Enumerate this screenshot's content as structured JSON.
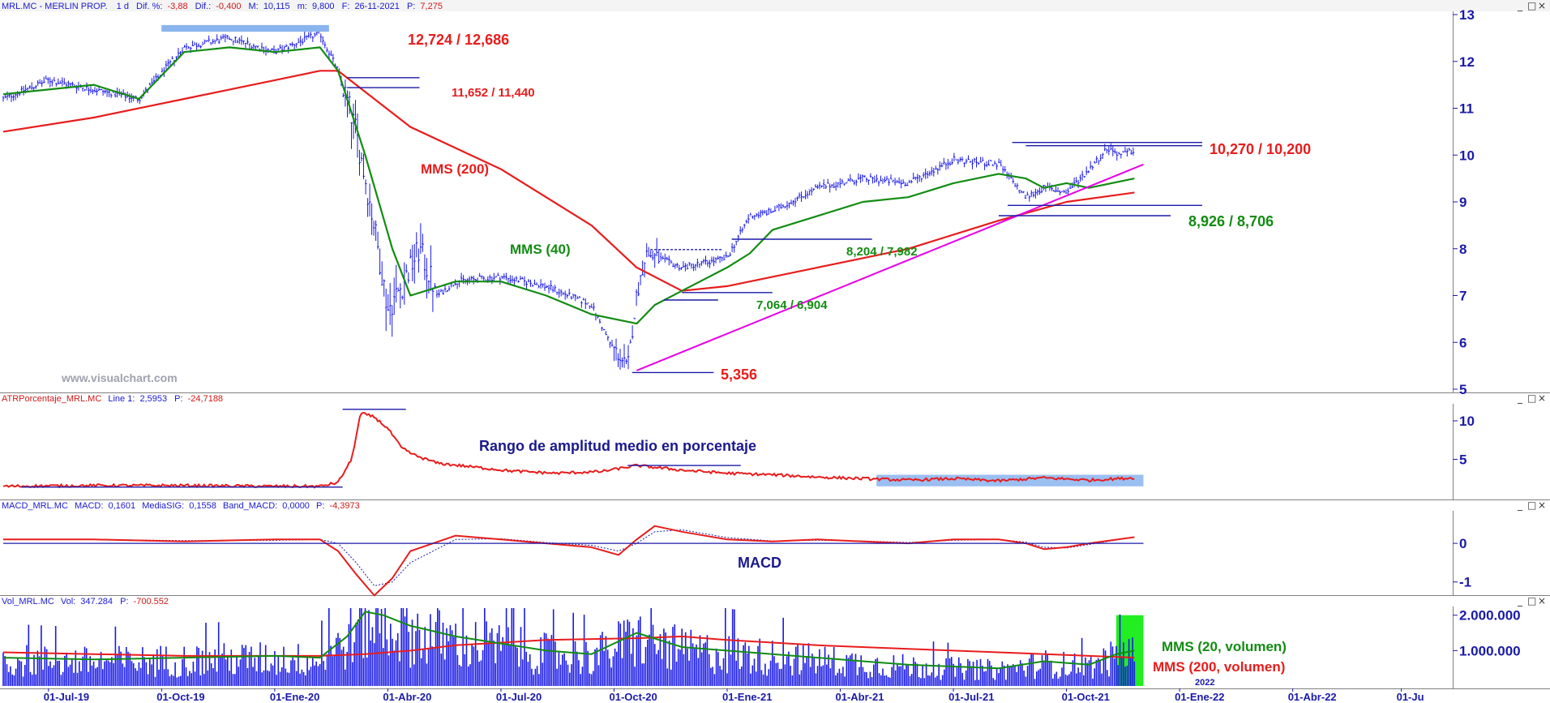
{
  "colors": {
    "price": "#1a1ae6",
    "sma200": "#e81c1c",
    "sma40": "#128c12",
    "trend": "#e800e8",
    "level": "#1a1aa8",
    "header_blue": "#1a1ad0",
    "header_red": "#d01818",
    "zone": "#8ab4ee",
    "volume": "#1a1ae6",
    "vol_highlight": "#22ee22",
    "axis_text": "#1a1aa8"
  },
  "watermark": "www.visualchart.com",
  "header": {
    "symbol": "MRL.MC - MERLIN PROP.",
    "period": "1 d",
    "dif_pct_label": "Dif. %:",
    "dif_pct_value": "-3,88",
    "dif_label": "Dif.:",
    "dif_value": "-0,400",
    "max_label": "M:",
    "max_value": "10,115",
    "min_label": "m:",
    "min_value": "9,800",
    "date_label": "F:",
    "date_value": "26-11-2021",
    "p_label": "P:",
    "p_value": "7,275"
  },
  "atr_header": {
    "name": "ATRPorcentaje_MRL.MC",
    "line_label": "Line 1:",
    "line_value": "2,5953",
    "p_label": "P:",
    "p_value": "-24,7188"
  },
  "macd_header": {
    "name": "MACD_MRL.MC",
    "macd_label": "MACD:",
    "macd_value": "0,1601",
    "sig_label": "MediaSIG:",
    "sig_value": "0,1558",
    "band_label": "Band_MACD:",
    "band_value": "0,0000",
    "p_label": "P:",
    "p_value": "-4,3973"
  },
  "vol_header": {
    "name": "Vol_MRL.MC",
    "vol_label": "Vol:",
    "vol_value": "347.284",
    "p_label": "P:",
    "p_value": "-700.552"
  },
  "window_buttons": {
    "minimize": "_",
    "restore": "□",
    "close": "×"
  },
  "annotations": {
    "resist_top": "12,724 / 12,686",
    "resist_mid": "11,652 / 11,440",
    "resist_recent": "10,270 / 10,200",
    "support_recent": "8,926 / 8,706",
    "level_8204": "8,204 / 7,982",
    "level_7064": "7,064 / 6,904",
    "low_5356": "5,356",
    "sma200_label": "MMS (200)",
    "sma40_label": "MMS (40)",
    "atr_text": "Rango de amplitud medio en porcentaje",
    "macd_text": "MACD",
    "vol_sma20_label": "MMS (20, volumen)",
    "vol_sma200_label": "MMS (200, volumen)",
    "year_2022": "2022"
  },
  "chart_data": [
    {
      "panel": "price",
      "type": "line",
      "price_style": "daily bars (OHLC)",
      "ylim": [
        5,
        13
      ],
      "yticks": [
        5,
        6,
        7,
        8,
        9,
        10,
        11,
        12,
        13
      ],
      "xticks": [
        "01-Jul-19",
        "01-Oct-19",
        "01-Ene-20",
        "01-Abr-20",
        "01-Jul-20",
        "01-Oct-20",
        "01-Ene-21",
        "01-Abr-21",
        "01-Jul-21",
        "01-Oct-21",
        "01-Ene-22",
        "01-Abr-22",
        "01-Ju"
      ],
      "x": [
        2019.4,
        2019.5,
        2019.6,
        2019.7,
        2019.8,
        2019.9,
        2020.0,
        2020.1,
        2020.14,
        2020.18,
        2020.22,
        2020.25,
        2020.28,
        2020.32,
        2020.36,
        2020.4,
        2020.5,
        2020.6,
        2020.7,
        2020.74,
        2020.78,
        2020.8,
        2020.82,
        2020.9,
        2021.0,
        2021.05,
        2021.1,
        2021.2,
        2021.3,
        2021.4,
        2021.5,
        2021.6,
        2021.66,
        2021.7,
        2021.75,
        2021.8,
        2021.84,
        2021.87,
        2021.9
      ],
      "series": [
        {
          "values": [
            11.2,
            11.6,
            11.4,
            11.2,
            12.3,
            12.5,
            12.2,
            12.6,
            11.8,
            10.5,
            8.5,
            6.7,
            7.2,
            8.0,
            7.0,
            7.3,
            7.4,
            7.2,
            6.8,
            6.0,
            5.45,
            7.0,
            7.9,
            7.6,
            7.8,
            8.7,
            8.8,
            9.3,
            9.5,
            9.4,
            9.9,
            9.8,
            9.1,
            9.3,
            9.2,
            9.7,
            10.15,
            10.0,
            10.1
          ]
        },
        {
          "name": "MMS (200)",
          "x": [
            2019.4,
            2019.6,
            2019.8,
            2020.0,
            2020.1,
            2020.14,
            2020.3,
            2020.5,
            2020.7,
            2020.8,
            2020.9,
            2021.0,
            2021.2,
            2021.4,
            2021.6,
            2021.75,
            2021.9
          ],
          "values": [
            10.5,
            10.8,
            11.2,
            11.6,
            11.8,
            11.8,
            10.6,
            9.7,
            8.5,
            7.6,
            7.1,
            7.2,
            7.6,
            8.0,
            8.6,
            9.0,
            9.2
          ]
        },
        {
          "name": "MMS (40)",
          "x": [
            2019.4,
            2019.5,
            2019.6,
            2019.7,
            2019.8,
            2019.9,
            2020.0,
            2020.1,
            2020.14,
            2020.2,
            2020.26,
            2020.3,
            2020.4,
            2020.5,
            2020.6,
            2020.7,
            2020.8,
            2020.84,
            2020.9,
            2021.0,
            2021.05,
            2021.1,
            2021.2,
            2021.3,
            2021.4,
            2021.5,
            2021.6,
            2021.66,
            2021.7,
            2021.75,
            2021.8,
            2021.9
          ],
          "values": [
            11.3,
            11.4,
            11.5,
            11.2,
            12.2,
            12.3,
            12.2,
            12.3,
            11.8,
            10.0,
            8.0,
            7.0,
            7.3,
            7.3,
            7.0,
            6.6,
            6.4,
            6.8,
            7.1,
            7.6,
            7.9,
            8.4,
            8.7,
            9.0,
            9.1,
            9.4,
            9.6,
            9.5,
            9.3,
            9.4,
            9.3,
            9.5
          ]
        },
        {
          "name": "trend",
          "x": [
            2020.8,
            2021.92
          ],
          "values": [
            5.4,
            9.8
          ]
        }
      ],
      "levels": [
        {
          "label": "12,724 / 12,686",
          "values": [
            12.724,
            12.686
          ]
        },
        {
          "label": "11,652 / 11,440",
          "values": [
            11.652,
            11.44
          ]
        },
        {
          "label": "10,270 / 10,200",
          "values": [
            10.27,
            10.2
          ]
        },
        {
          "label": "8,926 / 8,706",
          "values": [
            8.926,
            8.706
          ]
        },
        {
          "label": "8,204 / 7,982",
          "values": [
            8.204,
            7.982
          ]
        },
        {
          "label": "7,064 / 6,904",
          "values": [
            7.064,
            6.904
          ]
        },
        {
          "label": "5,356",
          "values": [
            5.356
          ]
        }
      ]
    },
    {
      "panel": "atr_pct",
      "type": "line",
      "ylim": [
        0,
        12
      ],
      "yticks": [
        5,
        10
      ],
      "series": [
        {
          "x": [
            2019.4,
            2019.6,
            2019.8,
            2020.0,
            2020.1,
            2020.14,
            2020.17,
            2020.19,
            2020.22,
            2020.25,
            2020.28,
            2020.31,
            2020.36,
            2020.44,
            2020.52,
            2020.62,
            2020.72,
            2020.8,
            2020.9,
            2021.0,
            2021.1,
            2021.2,
            2021.3,
            2021.4,
            2021.5,
            2021.6,
            2021.7,
            2021.8,
            2021.9
          ],
          "values": [
            1.5,
            1.6,
            1.6,
            1.5,
            1.5,
            2.0,
            5.0,
            11.0,
            10.5,
            9.0,
            6.5,
            5.5,
            4.5,
            4.0,
            3.5,
            3.2,
            3.4,
            4.2,
            3.6,
            3.2,
            3.0,
            2.7,
            2.5,
            2.3,
            2.5,
            2.2,
            2.6,
            2.3,
            2.6
          ]
        }
      ]
    },
    {
      "panel": "macd",
      "type": "line",
      "ylim": [
        -1.3,
        0.8
      ],
      "yticks": [
        -1,
        0
      ],
      "series": [
        {
          "name": "MACD",
          "x": [
            2019.4,
            2019.6,
            2019.8,
            2020.0,
            2020.1,
            2020.14,
            2020.18,
            2020.22,
            2020.26,
            2020.3,
            2020.4,
            2020.5,
            2020.6,
            2020.7,
            2020.76,
            2020.8,
            2020.84,
            2020.9,
            2021.0,
            2021.1,
            2021.2,
            2021.3,
            2021.4,
            2021.5,
            2021.6,
            2021.66,
            2021.7,
            2021.75,
            2021.8,
            2021.9
          ],
          "values": [
            0.1,
            0.1,
            0.05,
            0.1,
            0.1,
            -0.2,
            -0.8,
            -1.35,
            -0.9,
            -0.2,
            0.2,
            0.1,
            0.0,
            -0.1,
            -0.3,
            0.1,
            0.45,
            0.3,
            0.1,
            0.05,
            0.1,
            0.05,
            0.0,
            0.1,
            0.1,
            0.0,
            -0.15,
            -0.1,
            0.0,
            0.16
          ]
        },
        {
          "name": "MediaSIG",
          "x": [
            2019.4,
            2019.6,
            2019.8,
            2020.0,
            2020.1,
            2020.14,
            2020.18,
            2020.22,
            2020.26,
            2020.3,
            2020.4,
            2020.5,
            2020.6,
            2020.7,
            2020.76,
            2020.8,
            2020.84,
            2020.9,
            2021.0,
            2021.1,
            2021.2,
            2021.3,
            2021.4,
            2021.5,
            2021.6,
            2021.66,
            2021.7,
            2021.75,
            2021.8,
            2021.9
          ],
          "values": [
            0.1,
            0.1,
            0.07,
            0.08,
            0.1,
            0.0,
            -0.5,
            -1.1,
            -1.0,
            -0.5,
            0.1,
            0.12,
            0.02,
            -0.05,
            -0.2,
            0.0,
            0.3,
            0.35,
            0.15,
            0.06,
            0.08,
            0.06,
            0.02,
            0.08,
            0.1,
            0.03,
            -0.1,
            -0.12,
            -0.03,
            0.16
          ]
        }
      ]
    },
    {
      "panel": "volume",
      "type": "bar",
      "ylim": [
        0,
        2200000
      ],
      "yticks": [
        1000000,
        2000000
      ],
      "ytick_labels": [
        "1.000.000",
        "2.000.000"
      ],
      "series": [
        {
          "name": "MMS (20, volumen)",
          "x": [
            2019.4,
            2019.6,
            2019.8,
            2020.0,
            2020.1,
            2020.16,
            2020.2,
            2020.24,
            2020.3,
            2020.4,
            2020.5,
            2020.6,
            2020.7,
            2020.8,
            2020.9,
            2021.0,
            2021.1,
            2021.2,
            2021.3,
            2021.4,
            2021.5,
            2021.6,
            2021.7,
            2021.8,
            2021.86,
            2021.9
          ],
          "values": [
            800000,
            750000,
            800000,
            850000,
            800000,
            1400000,
            2100000,
            2000000,
            1700000,
            1400000,
            1200000,
            1000000,
            900000,
            1500000,
            1100000,
            1000000,
            900000,
            800000,
            700000,
            600000,
            550000,
            500000,
            700000,
            600000,
            900000,
            1000000
          ]
        },
        {
          "name": "MMS (200, volumen)",
          "x": [
            2019.4,
            2019.6,
            2019.8,
            2020.0,
            2020.1,
            2020.2,
            2020.3,
            2020.4,
            2020.6,
            2020.8,
            2020.9,
            2021.0,
            2021.2,
            2021.4,
            2021.6,
            2021.8,
            2021.9
          ],
          "values": [
            950000,
            900000,
            850000,
            850000,
            850000,
            900000,
            1000000,
            1150000,
            1300000,
            1350000,
            1400000,
            1300000,
            1150000,
            1050000,
            950000,
            850000,
            800000
          ]
        }
      ]
    }
  ]
}
